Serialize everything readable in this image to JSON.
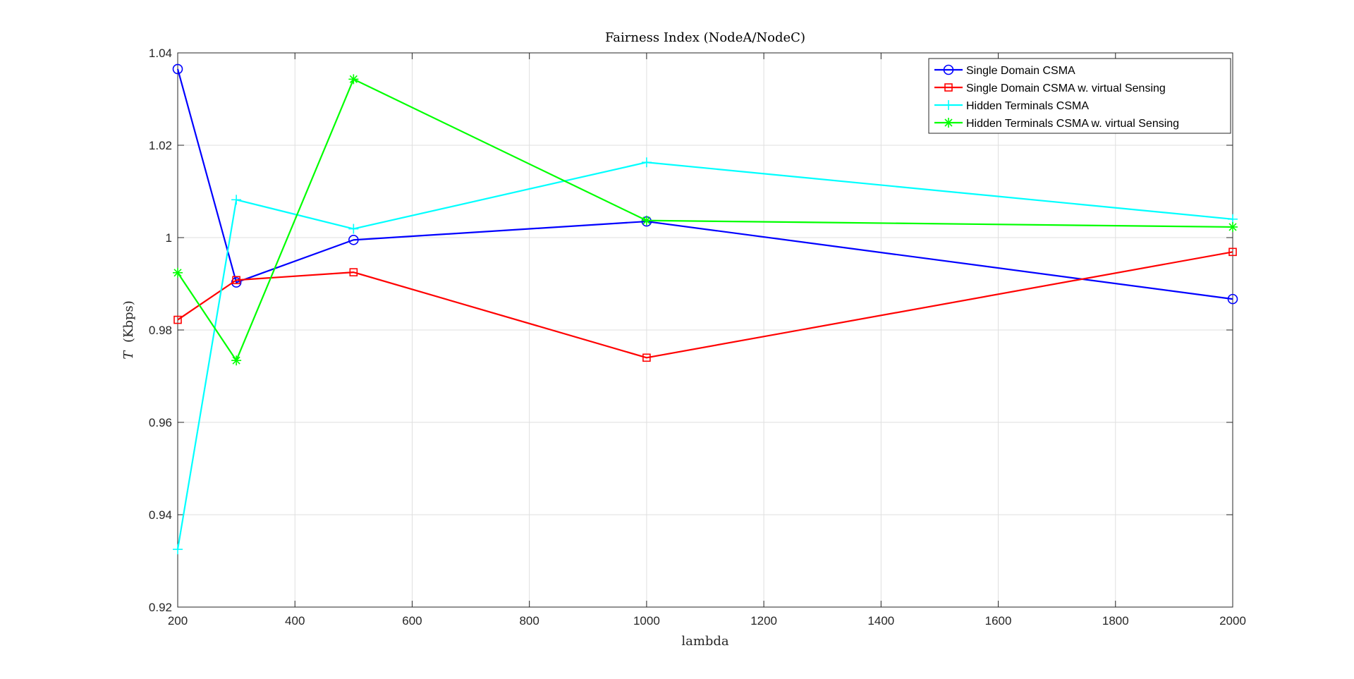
{
  "chart_data": {
    "type": "line",
    "title": "Fairness Index (NodeA/NodeC)",
    "xlabel": "lambda",
    "ylabel_symbol": "T",
    "ylabel_unit": "(Kbps)",
    "xlim": [
      200,
      2000
    ],
    "ylim": [
      0.92,
      1.04
    ],
    "xticks": [
      200,
      400,
      600,
      800,
      1000,
      1200,
      1400,
      1600,
      1800,
      2000
    ],
    "yticks": [
      0.92,
      0.94,
      0.96,
      0.98,
      1,
      1.02,
      1.04
    ],
    "xtick_labels": [
      "200",
      "400",
      "600",
      "800",
      "1000",
      "1200",
      "1400",
      "1600",
      "1800",
      "2000"
    ],
    "ytick_labels": [
      "0.92",
      "0.94",
      "0.96",
      "0.98",
      "1",
      "1.02",
      "1.04"
    ],
    "grid": true,
    "legend_position": "top-right",
    "x": [
      200,
      300,
      500,
      1000,
      2000
    ],
    "series": [
      {
        "name": "Single Domain CSMA",
        "color": "#0000ff",
        "marker": "circle",
        "values": [
          1.0365,
          0.9903,
          0.9995,
          1.0035,
          0.9867
        ]
      },
      {
        "name": "Single Domain CSMA w.  virtual Sensing",
        "color": "#ff0000",
        "marker": "square",
        "values": [
          0.9822,
          0.9908,
          0.9925,
          0.974,
          0.9969
        ]
      },
      {
        "name": "Hidden Terminals CSMA",
        "color": "#00ffff",
        "marker": "plus",
        "values": [
          0.9325,
          1.0082,
          1.0019,
          1.0163,
          1.004
        ]
      },
      {
        "name": "Hidden Terminals CSMA w.  virtual Sensing",
        "color": "#00ff00",
        "marker": "asterisk",
        "values": [
          0.9924,
          0.9734,
          1.0343,
          1.0037,
          1.0023
        ]
      }
    ]
  }
}
